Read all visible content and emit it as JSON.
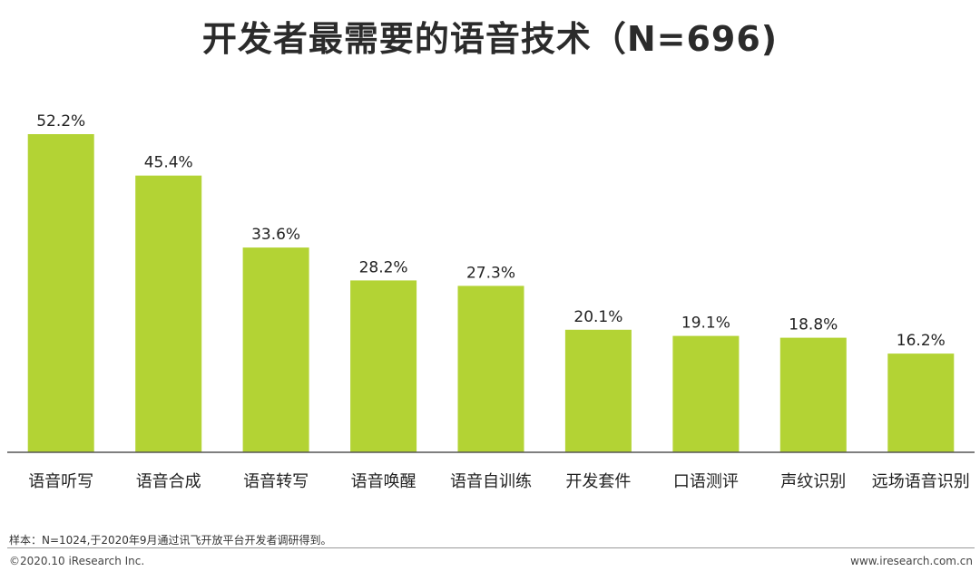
{
  "chart_data": {
    "type": "bar",
    "title": "开发者最需要的语音技术（N=696)",
    "categories": [
      "语音听写",
      "语音合成",
      "语音转写",
      "语音唤醒",
      "语音自训练",
      "开发套件",
      "口语测评",
      "声纹识别",
      "远场语音识别"
    ],
    "values": [
      52.2,
      45.4,
      33.6,
      28.2,
      27.3,
      20.1,
      19.1,
      18.8,
      16.2
    ],
    "value_labels": [
      "52.2%",
      "45.4%",
      "33.6%",
      "28.2%",
      "27.3%",
      "20.1%",
      "19.1%",
      "18.8%",
      "16.2%"
    ],
    "ylim": [
      0,
      52.2
    ],
    "bar_color": "#b3d334",
    "grid": false,
    "xlabel": "",
    "ylabel": ""
  },
  "footer": {
    "note": "样本：N=1024,于2020年9月通过讯飞开放平台开发者调研得到。",
    "copyright": "©2020.10 iResearch Inc.",
    "website": "www.iresearch.com.cn"
  }
}
